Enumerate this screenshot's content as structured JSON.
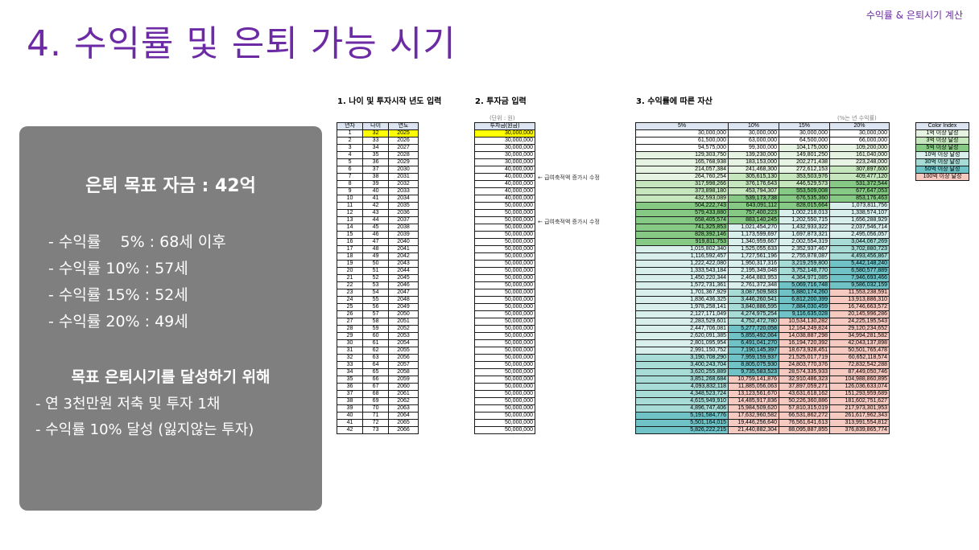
{
  "corner_label": "수익률 & 은퇴시기 계산",
  "title": "4. 수익률 및 은퇴 가능 시기",
  "panel": {
    "goal": "은퇴 목표 자금 : 42억",
    "rates": [
      "- 수익률    5% : 68세 이후",
      "- 수익률 10% : 57세",
      "- 수익률 15% : 52세",
      "- 수익률 20% : 49세"
    ],
    "how_title": "목표 은퇴시기를 달성하기 위해",
    "how_items": [
      "- 연 3천만원 저축 및 투자 1채",
      "- 수익률 10% 달성 (잃지않는 투자)"
    ]
  },
  "section1": {
    "label": "1. 나이 및 투자시작 년도 입력",
    "headers": [
      "년차",
      "나이",
      "연도"
    ]
  },
  "section2": {
    "label": "2. 투자금 입력",
    "unit": "(단위 : 원)",
    "header": "투자금(원금)",
    "note": "← 급여축적액 증가시 수정"
  },
  "section3": {
    "label": "3. 수익률에 따른 자산",
    "note": "(%는 년 수익률)",
    "headers": [
      "5%",
      "10%",
      "15%",
      "20%"
    ]
  },
  "color_index": {
    "title": "Color Index",
    "items": [
      {
        "label": "1억 이상 달성",
        "color": "#e6f2e2"
      },
      {
        "label": "3억 이상 달성",
        "color": "#c6e6bd"
      },
      {
        "label": "5억 이상 달성",
        "color": "#86c984"
      },
      {
        "label": "10억 이상 달성",
        "color": "#d9efeb"
      },
      {
        "label": "30억 이상 달성",
        "color": "#a6dbd6"
      },
      {
        "label": "50억 이상 달성",
        "color": "#6fc2c6"
      },
      {
        "label": "100억 이상 달성",
        "color": "#f6c9c1"
      }
    ]
  },
  "rows": [
    [
      "1",
      "32",
      "2025",
      "30,000,000",
      "30,000,000",
      "30,000,000",
      "30,000,000",
      "30,000,000"
    ],
    [
      "2",
      "33",
      "2026",
      "30,000,000",
      "61,500,000",
      "63,000,000",
      "64,500,000",
      "66,000,000"
    ],
    [
      "3",
      "34",
      "2027",
      "30,000,000",
      "94,575,000",
      "99,300,000",
      "104,175,000",
      "109,200,000"
    ],
    [
      "4",
      "35",
      "2028",
      "30,000,000",
      "129,303,750",
      "139,230,000",
      "149,801,250",
      "161,040,000"
    ],
    [
      "5",
      "36",
      "2029",
      "30,000,000",
      "165,768,938",
      "183,153,000",
      "202,271,438",
      "223,248,000"
    ],
    [
      "6",
      "37",
      "2030",
      "40,000,000",
      "214,057,384",
      "241,468,300",
      "272,612,153",
      "307,897,600"
    ],
    [
      "7",
      "38",
      "2031",
      "40,000,000",
      "264,760,254",
      "305,615,130",
      "353,503,976",
      "409,477,120"
    ],
    [
      "8",
      "39",
      "2032",
      "40,000,000",
      "317,998,266",
      "376,176,643",
      "446,529,573",
      "531,372,544"
    ],
    [
      "9",
      "40",
      "2033",
      "40,000,000",
      "373,898,180",
      "453,794,307",
      "553,509,008",
      "677,647,053"
    ],
    [
      "10",
      "41",
      "2034",
      "40,000,000",
      "432,593,089",
      "539,173,738",
      "676,535,360",
      "853,176,463"
    ],
    [
      "11",
      "42",
      "2035",
      "50,000,000",
      "504,222,743",
      "643,091,112",
      "828,015,664",
      "1,073,811,756"
    ],
    [
      "12",
      "43",
      "2036",
      "50,000,000",
      "579,433,880",
      "757,400,223",
      "1,002,218,013",
      "1,338,574,107"
    ],
    [
      "13",
      "44",
      "2037",
      "50,000,000",
      "658,405,574",
      "883,140,245",
      "1,202,550,715",
      "1,656,288,929"
    ],
    [
      "14",
      "45",
      "2038",
      "50,000,000",
      "741,325,853",
      "1,021,454,270",
      "1,432,933,322",
      "2,037,546,714"
    ],
    [
      "15",
      "46",
      "2039",
      "50,000,000",
      "828,392,146",
      "1,173,599,697",
      "1,697,873,321",
      "2,495,056,057"
    ],
    [
      "16",
      "47",
      "2040",
      "50,000,000",
      "919,811,753",
      "1,340,959,667",
      "2,002,554,319",
      "3,044,067,269"
    ],
    [
      "17",
      "48",
      "2041",
      "50,000,000",
      "1,015,802,340",
      "1,525,055,633",
      "2,352,937,467",
      "3,702,880,723"
    ],
    [
      "18",
      "49",
      "2042",
      "50,000,000",
      "1,116,592,457",
      "1,727,561,196",
      "2,755,878,087",
      "4,493,456,867"
    ],
    [
      "19",
      "50",
      "2043",
      "50,000,000",
      "1,222,422,080",
      "1,950,317,316",
      "3,219,259,800",
      "5,442,148,240"
    ],
    [
      "20",
      "51",
      "2044",
      "50,000,000",
      "1,333,543,184",
      "2,195,349,048",
      "3,752,148,770",
      "6,580,577,889"
    ],
    [
      "21",
      "52",
      "2045",
      "50,000,000",
      "1,450,220,344",
      "2,464,883,953",
      "4,364,971,085",
      "7,946,693,466"
    ],
    [
      "22",
      "53",
      "2046",
      "50,000,000",
      "1,572,731,361",
      "2,761,372,348",
      "5,069,716,748",
      "9,586,032,159"
    ],
    [
      "23",
      "54",
      "2047",
      "50,000,000",
      "1,701,367,929",
      "3,087,509,583",
      "5,880,174,260",
      "11,553,238,591"
    ],
    [
      "24",
      "55",
      "2048",
      "50,000,000",
      "1,836,436,325",
      "3,446,260,541",
      "6,812,200,399",
      "13,913,886,310"
    ],
    [
      "25",
      "56",
      "2049",
      "50,000,000",
      "1,978,258,141",
      "3,840,886,595",
      "7,884,030,459",
      "16,746,663,572"
    ],
    [
      "26",
      "57",
      "2050",
      "50,000,000",
      "2,127,171,049",
      "4,274,975,254",
      "9,116,635,028",
      "20,145,996,286"
    ],
    [
      "27",
      "58",
      "2051",
      "50,000,000",
      "2,283,529,601",
      "4,752,472,780",
      "10,534,130,282",
      "24,225,195,543"
    ],
    [
      "28",
      "59",
      "2052",
      "50,000,000",
      "2,447,706,081",
      "5,277,720,058",
      "12,164,249,824",
      "29,120,234,652"
    ],
    [
      "29",
      "60",
      "2053",
      "50,000,000",
      "2,620,091,385",
      "5,855,492,064",
      "14,038,887,298",
      "34,994,281,582"
    ],
    [
      "30",
      "61",
      "2054",
      "50,000,000",
      "2,801,095,954",
      "6,491,041,270",
      "16,194,720,392",
      "42,043,137,898"
    ],
    [
      "31",
      "62",
      "2055",
      "50,000,000",
      "2,991,150,752",
      "7,190,145,397",
      "18,673,928,451",
      "50,501,765,478"
    ],
    [
      "32",
      "63",
      "2056",
      "50,000,000",
      "3,190,708,290",
      "7,959,159,937",
      "21,525,017,719",
      "60,652,118,574"
    ],
    [
      "33",
      "64",
      "2057",
      "50,000,000",
      "3,400,243,704",
      "8,805,075,930",
      "24,803,770,376",
      "72,832,542,288"
    ],
    [
      "34",
      "65",
      "2058",
      "50,000,000",
      "3,620,255,889",
      "9,735,583,523",
      "28,574,335,933",
      "87,449,050,746"
    ],
    [
      "35",
      "66",
      "2059",
      "50,000,000",
      "3,851,268,684",
      "10,759,141,876",
      "32,910,486,323",
      "104,988,860,895"
    ],
    [
      "36",
      "67",
      "2060",
      "50,000,000",
      "4,093,832,118",
      "11,885,056,063",
      "37,897,059,271",
      "126,036,633,074"
    ],
    [
      "37",
      "68",
      "2061",
      "50,000,000",
      "4,348,523,724",
      "13,123,561,670",
      "43,631,618,162",
      "151,293,959,689"
    ],
    [
      "38",
      "69",
      "2062",
      "50,000,000",
      "4,615,949,910",
      "14,485,917,836",
      "50,226,360,886",
      "181,602,751,627"
    ],
    [
      "39",
      "70",
      "2063",
      "50,000,000",
      "4,896,747,406",
      "15,984,509,620",
      "57,810,315,019",
      "217,973,301,953"
    ],
    [
      "40",
      "71",
      "2064",
      "50,000,000",
      "5,191,584,776",
      "17,632,960,582",
      "66,531,862,272",
      "261,617,962,343"
    ],
    [
      "41",
      "72",
      "2065",
      "50,000,000",
      "5,501,164,015",
      "19,446,256,640",
      "76,561,641,613",
      "313,991,554,812"
    ],
    [
      "42",
      "73",
      "2066",
      "50,000,000",
      "5,826,222,215",
      "21,440,882,304",
      "88,095,887,855",
      "376,839,865,774"
    ]
  ]
}
